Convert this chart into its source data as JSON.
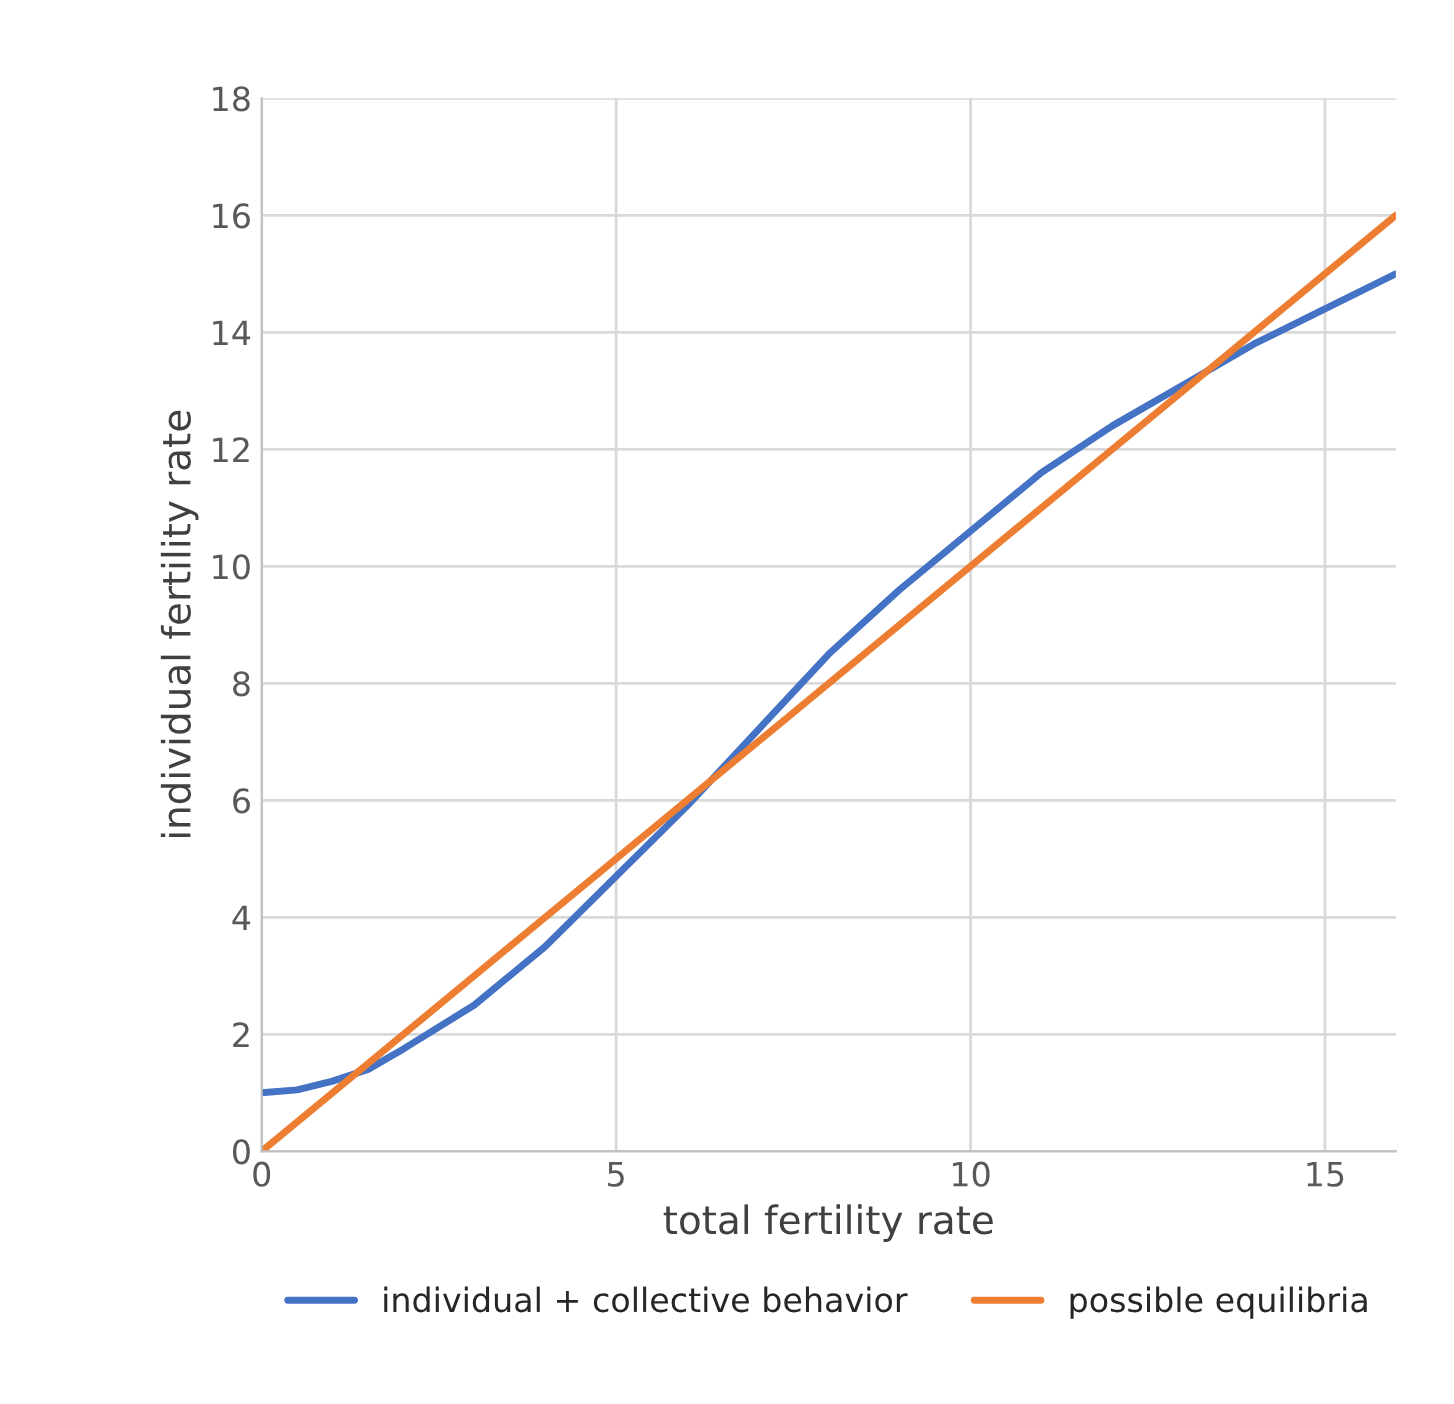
{
  "chart_data": {
    "type": "line",
    "xlabel": "total fertility rate",
    "ylabel": "individual fertility rate",
    "xlim": [
      0,
      16
    ],
    "xticks": [
      0,
      5,
      10,
      15
    ],
    "ylim": [
      0,
      18
    ],
    "yticks": [
      0,
      2,
      4,
      6,
      8,
      10,
      12,
      14,
      16,
      18
    ],
    "grid": true,
    "legend": "bottom",
    "marker": "none",
    "line_style": "solid",
    "series": [
      {
        "name": "individual + collective behavior",
        "color": "#4472c4",
        "x": [
          0,
          0.5,
          1,
          1.5,
          2,
          3,
          4,
          5,
          6,
          7,
          8,
          9,
          10,
          11,
          12,
          13,
          14,
          15,
          16
        ],
        "values": [
          1,
          1.05,
          1.2,
          1.4,
          1.75,
          2.5,
          3.5,
          4.7,
          5.9,
          7.2,
          8.5,
          9.6,
          10.6,
          11.6,
          12.4,
          13.1,
          13.8,
          14.4,
          15
        ]
      },
      {
        "name": "possible equilibria",
        "color": "#ed7d31",
        "x": [
          0,
          16
        ],
        "values": [
          0,
          16
        ]
      }
    ]
  }
}
